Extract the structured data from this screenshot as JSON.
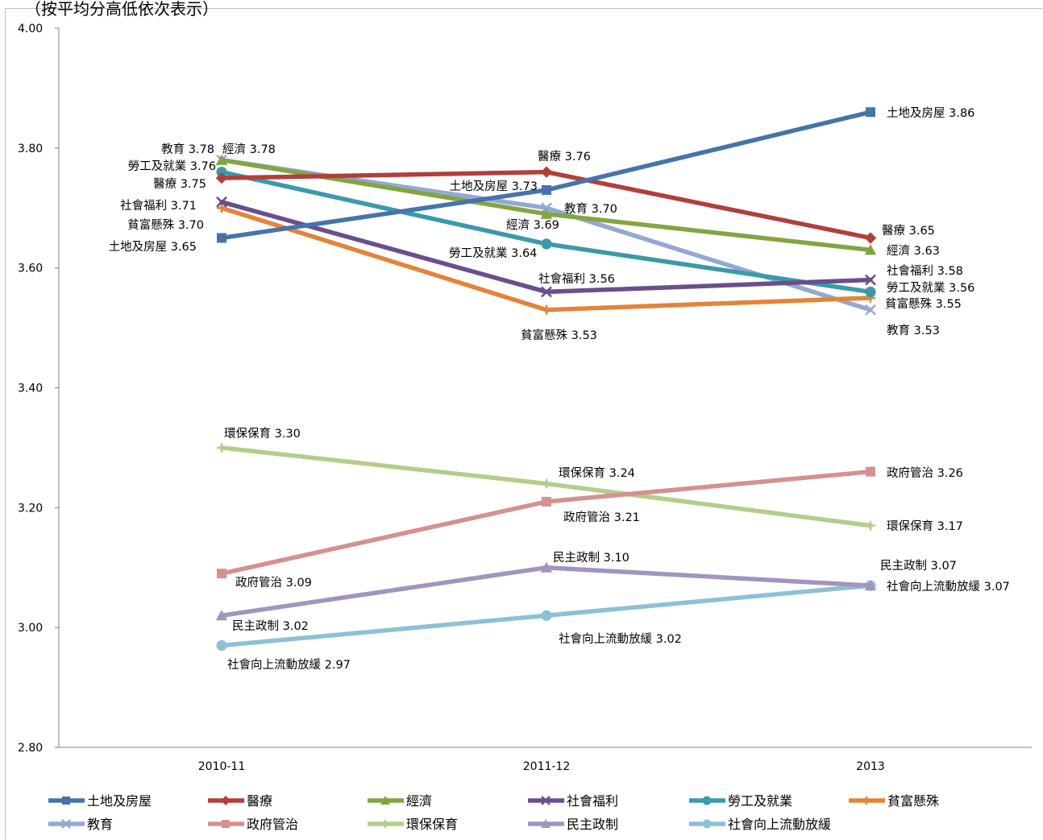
{
  "header": {
    "note": "（按平均分高低依次表示）"
  },
  "chart_data": {
    "type": "line",
    "x": [
      "2010-11",
      "2011-12",
      "2013"
    ],
    "ylim": [
      2.8,
      4.0
    ],
    "yticks": [
      "2.80",
      "3.00",
      "3.20",
      "3.40",
      "3.60",
      "3.80",
      "4.00"
    ],
    "grid": false,
    "legend_position": "bottom",
    "series": [
      {
        "name": "土地及房屋",
        "color": "#4674aa",
        "marker": "square",
        "values": [
          3.65,
          3.73,
          3.86
        ],
        "labels": [
          "土地及房屋 3.65",
          "土地及房屋 3.73",
          "土地及房屋 3.86"
        ]
      },
      {
        "name": "醫療",
        "color": "#b13f3b",
        "marker": "diamond",
        "values": [
          3.75,
          3.76,
          3.65
        ],
        "labels": [
          "醫療 3.75",
          "醫療 3.76",
          "醫療 3.65"
        ]
      },
      {
        "name": "經濟",
        "color": "#83a540",
        "marker": "triangle",
        "values": [
          3.78,
          3.69,
          3.63
        ],
        "labels": [
          "經濟 3.78",
          "經濟 3.69",
          "經濟 3.63"
        ]
      },
      {
        "name": "社會福利",
        "color": "#6b4e8c",
        "marker": "x",
        "values": [
          3.71,
          3.56,
          3.58
        ],
        "labels": [
          "社會福利 3.71",
          "社會福利 3.56",
          "社會福利 3.58"
        ]
      },
      {
        "name": "勞工及就業",
        "color": "#3a9aab",
        "marker": "circle",
        "values": [
          3.76,
          3.64,
          3.56
        ],
        "labels": [
          "勞工及就業 3.76",
          "勞工及就業 3.64",
          "勞工及就業 3.56"
        ]
      },
      {
        "name": "貧富懸殊",
        "color": "#e3843a",
        "marker": "plus",
        "values": [
          3.7,
          3.53,
          3.55
        ],
        "labels": [
          "貧富懸殊 3.70",
          "貧富懸殊 3.53",
          "貧富懸殊 3.55"
        ]
      },
      {
        "name": "教育",
        "color": "#93a9d3",
        "marker": "x",
        "values": [
          3.78,
          3.7,
          3.53
        ],
        "labels": [
          "教育 3.78",
          "教育 3.70",
          "教育 3.53"
        ]
      },
      {
        "name": "政府管治",
        "color": "#d59090",
        "marker": "square",
        "values": [
          3.09,
          3.21,
          3.26
        ],
        "labels": [
          "政府管治 3.09",
          "政府管治 3.21",
          "政府管治 3.26"
        ]
      },
      {
        "name": "環保保育",
        "color": "#b4cd8c",
        "marker": "plus",
        "values": [
          3.3,
          3.24,
          3.17
        ],
        "labels": [
          "環保保育 3.30",
          "環保保育 3.24",
          "環保保育 3.17"
        ]
      },
      {
        "name": "民主政制",
        "color": "#a394bd",
        "marker": "triangle",
        "values": [
          3.02,
          3.1,
          3.07
        ],
        "labels": [
          "民主政制 3.02",
          "民主政制 3.10",
          "民主政制 3.07"
        ]
      },
      {
        "name": "社會向上流動放緩",
        "color": "#8dc1d4",
        "marker": "circle",
        "values": [
          2.97,
          3.02,
          3.07
        ],
        "labels": [
          "社會向上流動放緩 2.97",
          "社會向上流動放緩 3.02",
          "社會向上流動放緩 3.07"
        ]
      }
    ]
  }
}
